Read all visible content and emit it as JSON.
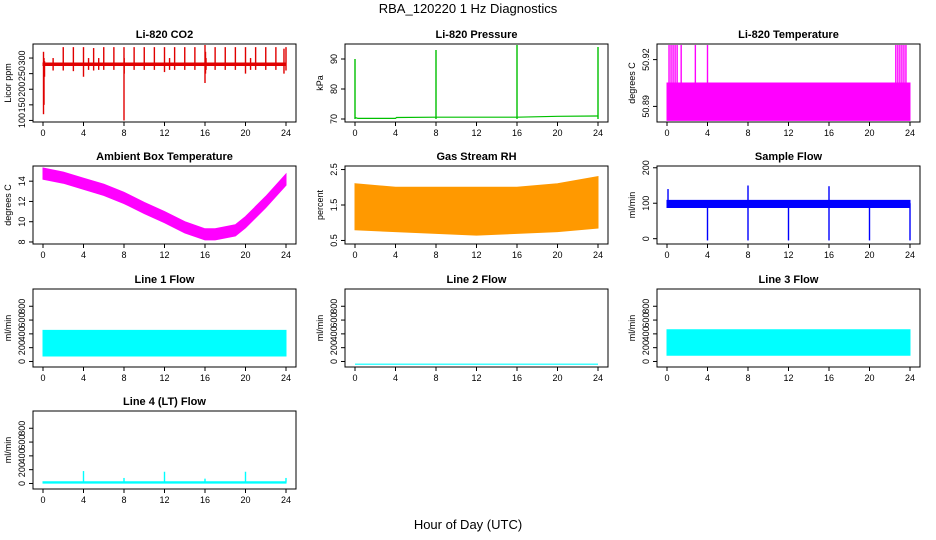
{
  "title": "RBA_120220  1 Hz Diagnostics",
  "xlabel": "Hour of Day (UTC)",
  "chart_data": [
    {
      "id": "co2",
      "type": "line",
      "title": "Li-820 CO2",
      "ylabel": "Licor ppm",
      "color": "#e00000",
      "xticks": [
        0,
        4,
        8,
        12,
        16,
        20,
        24
      ],
      "xlim": [
        0,
        24
      ],
      "yticks": [
        100,
        150,
        200,
        250,
        300
      ],
      "ylim": [
        95,
        345
      ],
      "series": [
        {
          "style": "band",
          "x": [
            0,
            24
          ],
          "lo": [
            276,
            276
          ],
          "hi": [
            284,
            284
          ]
        },
        {
          "style": "spikes",
          "x": [
            0.05,
            0.1,
            0.15,
            1.0,
            2.0,
            3.0,
            4.0,
            4.5,
            5.0,
            5.5,
            6.0,
            7.0,
            8.0,
            8.02,
            9.0,
            10.0,
            11.0,
            12.0,
            12.5,
            13.0,
            14.0,
            15.0,
            16.0,
            16.05,
            16.1,
            17.0,
            18.0,
            19.0,
            20.0,
            20.5,
            21.0,
            22.0,
            23.0,
            23.8,
            24.0
          ],
          "lo": [
            120,
            150,
            240,
            260,
            260,
            258,
            240,
            262,
            260,
            262,
            262,
            262,
            100,
            250,
            262,
            262,
            262,
            255,
            262,
            262,
            262,
            262,
            220,
            250,
            262,
            262,
            262,
            262,
            250,
            262,
            262,
            262,
            262,
            250,
            260
          ],
          "hi": [
            320,
            300,
            290,
            300,
            335,
            335,
            335,
            300,
            332,
            300,
            335,
            335,
            335,
            300,
            335,
            335,
            335,
            335,
            300,
            335,
            335,
            335,
            345,
            320,
            300,
            335,
            335,
            335,
            335,
            300,
            335,
            335,
            335,
            330,
            335
          ]
        }
      ]
    },
    {
      "id": "pressure",
      "type": "line",
      "title": "Li-820 Pressure",
      "ylabel": "kPa",
      "color": "#00c000",
      "xticks": [
        0,
        4,
        8,
        12,
        16,
        20,
        24
      ],
      "xlim": [
        0,
        24
      ],
      "yticks": [
        70,
        80,
        90
      ],
      "ylim": [
        69,
        95
      ],
      "series": [
        {
          "style": "line",
          "x": [
            0,
            0.3,
            4,
            4.1,
            8,
            12,
            16,
            20,
            23.8,
            24
          ],
          "y": [
            70.5,
            70.2,
            70.2,
            70.5,
            70.6,
            70.6,
            70.6,
            70.9,
            71,
            71
          ]
        },
        {
          "style": "spikes",
          "x": [
            0,
            8,
            16,
            24
          ],
          "lo": [
            70,
            70,
            70,
            70
          ],
          "hi": [
            90,
            93,
            95,
            94
          ]
        }
      ]
    },
    {
      "id": "temperature",
      "type": "line",
      "title": "Li-820 Temperature",
      "ylabel": "degrees C",
      "color": "#ff00ff",
      "xticks": [
        0,
        4,
        8,
        12,
        16,
        20,
        24
      ],
      "xlim": [
        0,
        24
      ],
      "yticks": [
        50.89,
        50.92
      ],
      "ylim": [
        50.88,
        50.93
      ],
      "yticklabels": [
        "50.89",
        "50.92"
      ],
      "series": [
        {
          "style": "band",
          "x": [
            0,
            24
          ],
          "lo": [
            50.881,
            50.881
          ],
          "hi": [
            50.905,
            50.905
          ]
        },
        {
          "style": "spikes",
          "x": [
            0.2,
            0.4,
            0.6,
            0.8,
            1.0,
            1.4,
            2.8,
            4.0,
            22.6,
            22.8,
            23.0,
            23.2,
            23.4,
            23.6
          ],
          "lo": [
            50.905,
            50.905,
            50.905,
            50.905,
            50.905,
            50.905,
            50.905,
            50.905,
            50.905,
            50.905,
            50.905,
            50.905,
            50.905,
            50.905
          ],
          "hi": [
            50.93,
            50.93,
            50.93,
            50.93,
            50.93,
            50.93,
            50.93,
            50.93,
            50.93,
            50.93,
            50.93,
            50.93,
            50.93,
            50.93
          ]
        }
      ]
    },
    {
      "id": "ambient",
      "type": "line",
      "title": "Ambient Box Temperature",
      "ylabel": "degrees C",
      "color": "#ff00ff",
      "xticks": [
        0,
        4,
        8,
        12,
        16,
        20,
        24
      ],
      "xlim": [
        0,
        24
      ],
      "yticks": [
        8,
        10,
        12,
        14
      ],
      "ylim": [
        7.8,
        15.5
      ],
      "series": [
        {
          "style": "band",
          "x": [
            0,
            2,
            4,
            6,
            8,
            10,
            12,
            14,
            16,
            17,
            18,
            19,
            20,
            22,
            24
          ],
          "lo": [
            14.2,
            13.8,
            13.2,
            12.6,
            11.8,
            10.8,
            9.9,
            8.9,
            8.2,
            8.2,
            8.4,
            8.6,
            9.4,
            11.4,
            13.6
          ],
          "hi": [
            15.3,
            14.9,
            14.3,
            13.7,
            12.9,
            11.9,
            11.0,
            10.0,
            9.3,
            9.3,
            9.5,
            9.7,
            10.5,
            12.5,
            14.7
          ]
        }
      ]
    },
    {
      "id": "rh",
      "type": "line",
      "title": "Gas Stream RH",
      "ylabel": "percent",
      "color": "#ff9900",
      "xticks": [
        0,
        4,
        8,
        12,
        16,
        20,
        24
      ],
      "xlim": [
        0,
        24
      ],
      "yticks": [
        0.5,
        1.5,
        2.5
      ],
      "yticklabels": [
        "0.5",
        "1.5",
        "2.5"
      ],
      "ylim": [
        0.4,
        2.6
      ],
      "series": [
        {
          "style": "band",
          "x": [
            0,
            4,
            8,
            12,
            16,
            20,
            24
          ],
          "lo": [
            0.8,
            0.75,
            0.7,
            0.65,
            0.7,
            0.75,
            0.85
          ],
          "hi": [
            2.1,
            2.0,
            2.0,
            2.0,
            2.0,
            2.1,
            2.3
          ]
        }
      ]
    },
    {
      "id": "sample",
      "type": "line",
      "title": "Sample Flow",
      "ylabel": "ml/min",
      "color": "#0000ff",
      "xticks": [
        0,
        4,
        8,
        12,
        16,
        20,
        24
      ],
      "xlim": [
        0,
        24
      ],
      "yticks": [
        0,
        100,
        200
      ],
      "ylim": [
        -15,
        205
      ],
      "series": [
        {
          "style": "band",
          "x": [
            0,
            24
          ],
          "lo": [
            88,
            88
          ],
          "hi": [
            108,
            108
          ]
        },
        {
          "style": "spikes",
          "x": [
            0.1,
            4.0,
            8.0,
            12.0,
            16.0,
            20.0,
            24.0
          ],
          "lo": [
            100,
            -5,
            -5,
            -5,
            -5,
            -5,
            -5
          ],
          "hi": [
            140,
            100,
            150,
            100,
            148,
            100,
            100
          ]
        }
      ]
    },
    {
      "id": "line1",
      "type": "line",
      "title": "Line 1 Flow",
      "ylabel": "ml/min",
      "color": "#00ffff",
      "xticks": [
        0,
        4,
        8,
        12,
        16,
        20,
        24
      ],
      "xlim": [
        0,
        24
      ],
      "yticks": [
        0,
        200,
        400,
        600,
        800
      ],
      "ylim": [
        -80,
        1050
      ],
      "series": [
        {
          "style": "band",
          "x": [
            0,
            24
          ],
          "lo": [
            80,
            80
          ],
          "hi": [
            450,
            450
          ]
        }
      ]
    },
    {
      "id": "line2",
      "type": "line",
      "title": "Line 2 Flow",
      "ylabel": "ml/min",
      "color": "#00ffff",
      "xticks": [
        0,
        4,
        8,
        12,
        16,
        20,
        24
      ],
      "xlim": [
        0,
        24
      ],
      "yticks": [
        0,
        200,
        400,
        600,
        800
      ],
      "ylim": [
        -80,
        1050
      ],
      "series": [
        {
          "style": "line",
          "x": [
            0,
            24
          ],
          "y": [
            -40,
            -40
          ]
        }
      ]
    },
    {
      "id": "line3",
      "type": "line",
      "title": "Line 3 Flow",
      "ylabel": "ml/min",
      "color": "#00ffff",
      "xticks": [
        0,
        4,
        8,
        12,
        16,
        20,
        24
      ],
      "xlim": [
        0,
        24
      ],
      "yticks": [
        0,
        200,
        400,
        600,
        800
      ],
      "ylim": [
        -80,
        1050
      ],
      "series": [
        {
          "style": "band",
          "x": [
            0,
            24
          ],
          "lo": [
            90,
            90
          ],
          "hi": [
            460,
            460
          ]
        }
      ]
    },
    {
      "id": "line4",
      "type": "line",
      "title": "Line 4 (LT) Flow",
      "ylabel": "ml/min",
      "color": "#00ffff",
      "xticks": [
        0,
        4,
        8,
        12,
        16,
        20,
        24
      ],
      "xlim": [
        0,
        24
      ],
      "yticks": [
        0,
        200,
        400,
        600,
        800
      ],
      "ylim": [
        -80,
        1050
      ],
      "series": [
        {
          "style": "band",
          "x": [
            0,
            24
          ],
          "lo": [
            5,
            5
          ],
          "hi": [
            25,
            25
          ]
        },
        {
          "style": "spikes",
          "x": [
            4.0,
            8.0,
            12.0,
            16.0,
            20.0,
            24.0
          ],
          "lo": [
            15,
            15,
            15,
            15,
            15,
            15
          ],
          "hi": [
            180,
            80,
            170,
            70,
            170,
            80
          ]
        }
      ]
    }
  ]
}
